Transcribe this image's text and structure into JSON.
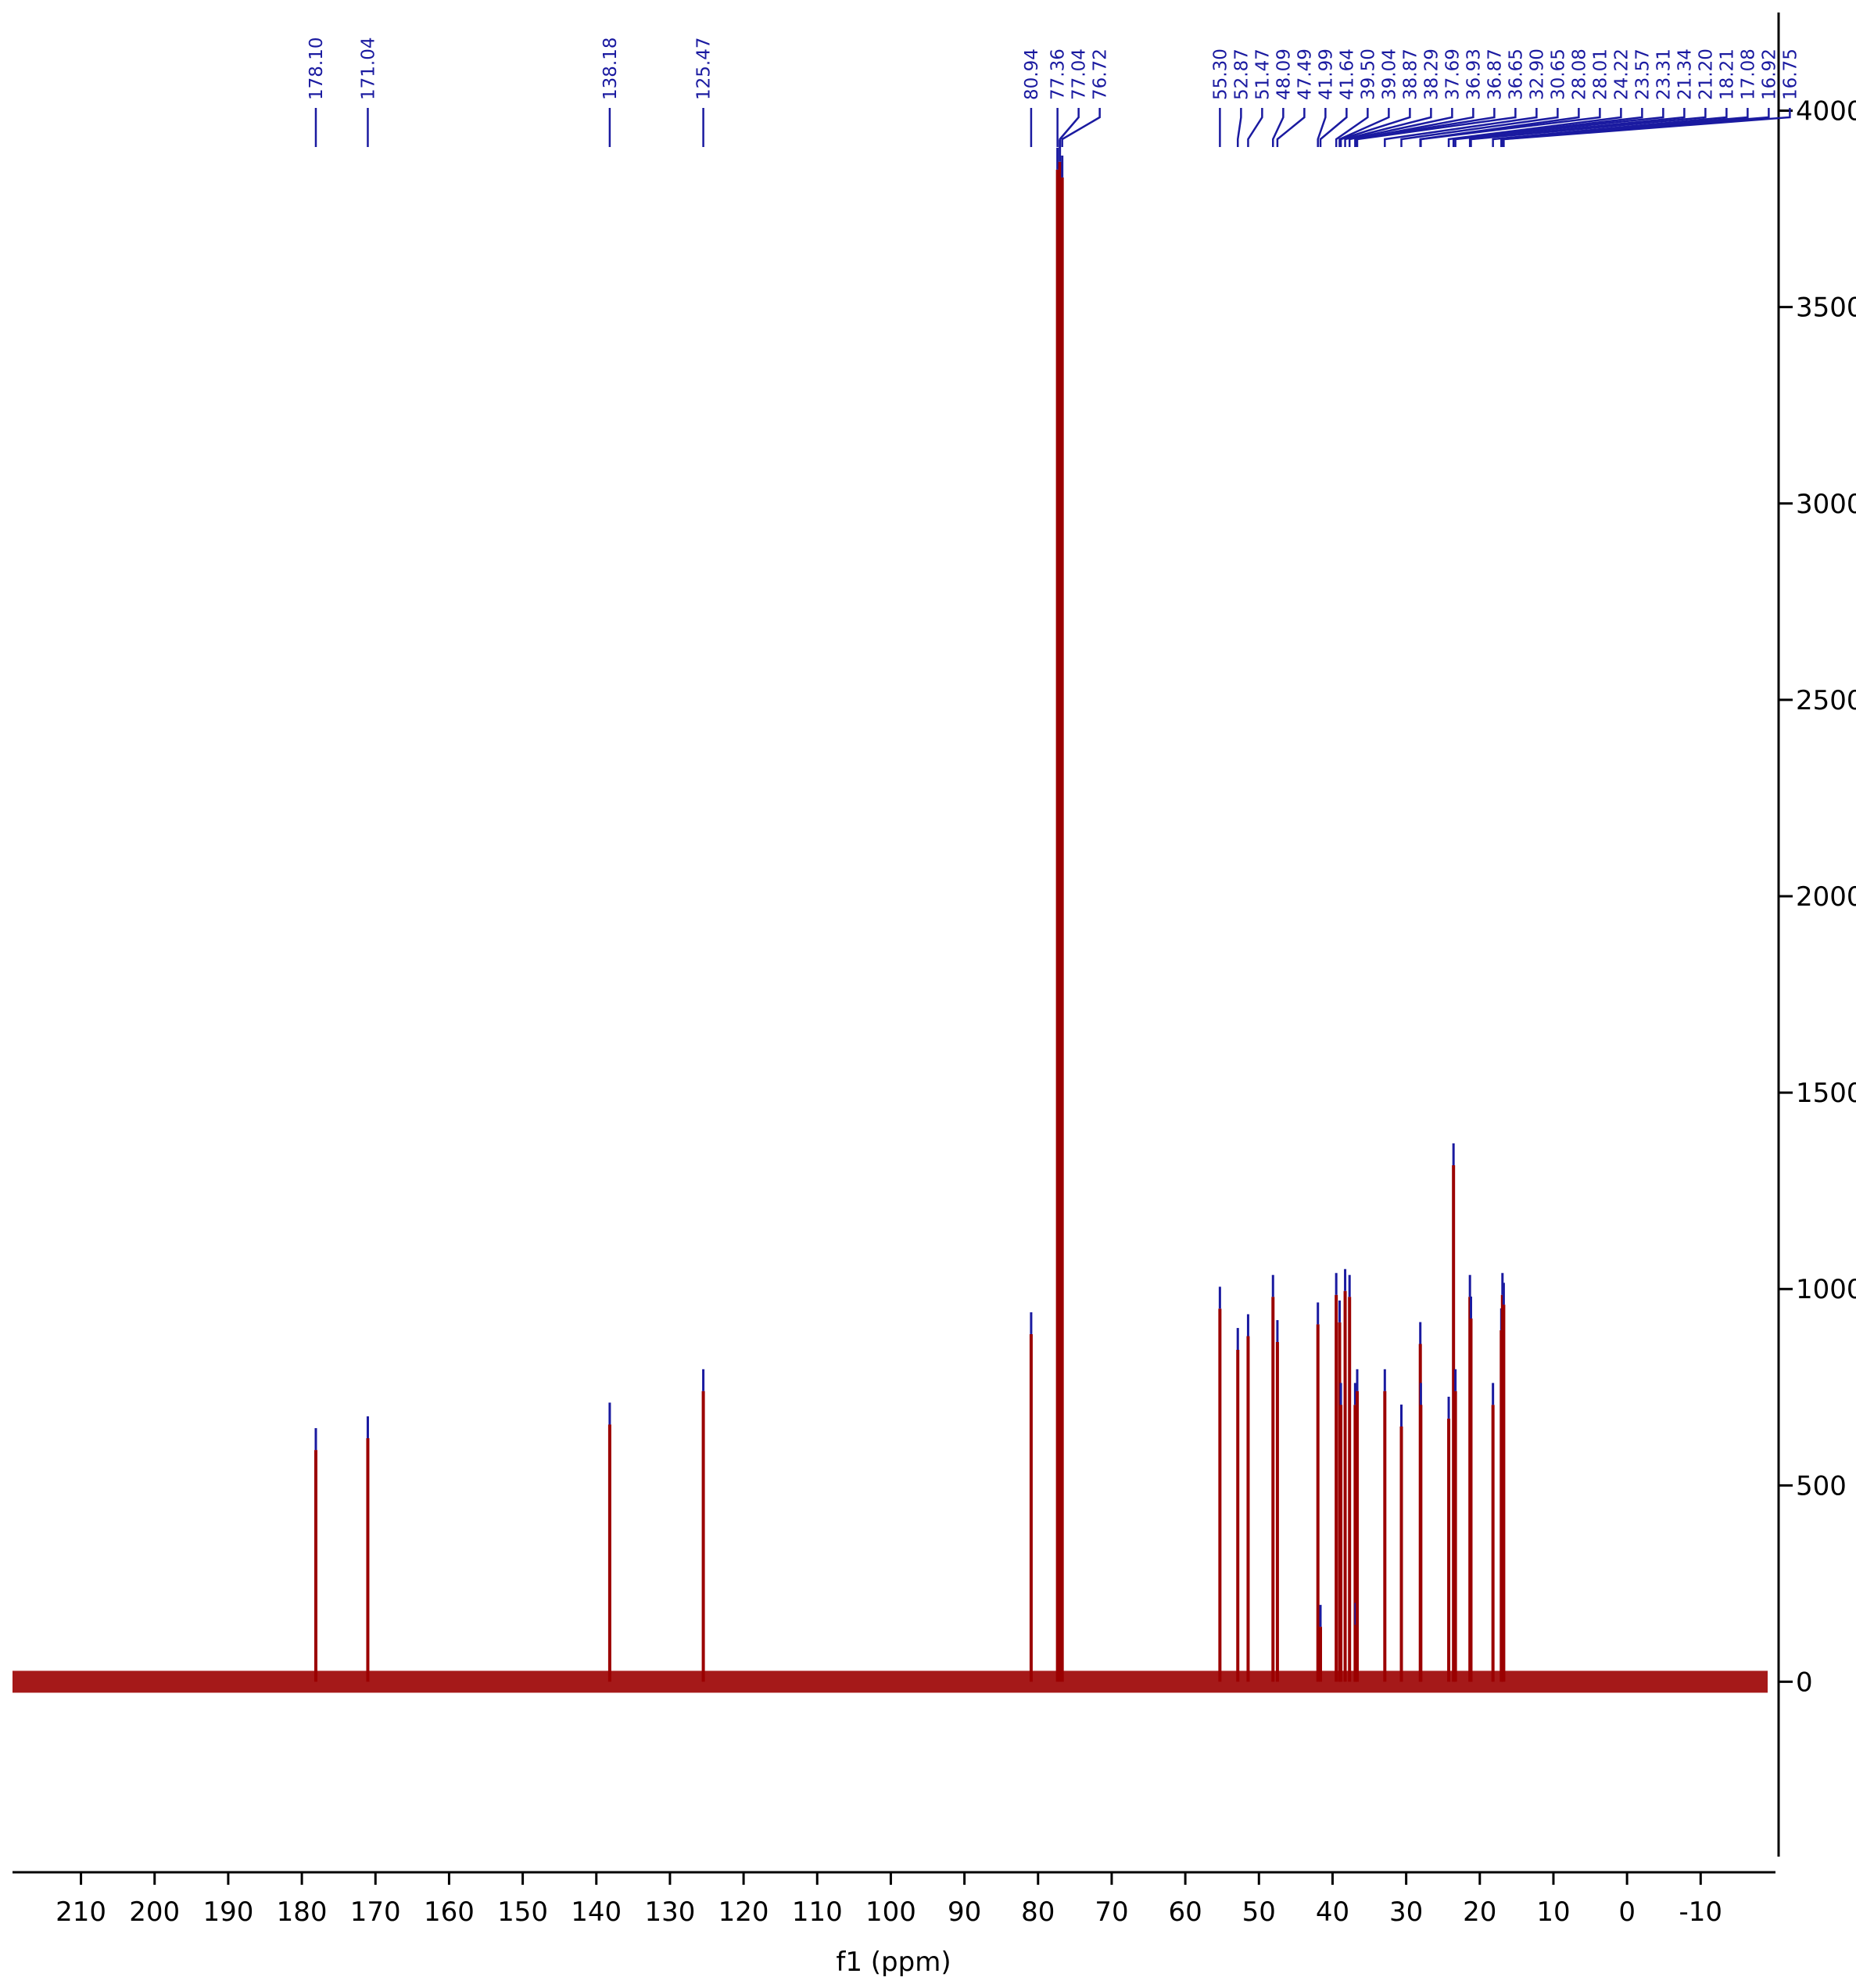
{
  "chart_data": {
    "type": "nmr-stick",
    "x_label": "f1 (ppm)",
    "x": [
      178.1,
      171.04,
      138.18,
      125.47,
      80.94,
      77.36,
      77.04,
      76.72,
      55.3,
      52.87,
      51.47,
      48.09,
      47.49,
      41.99,
      41.64,
      39.5,
      39.04,
      38.87,
      38.29,
      37.69,
      36.93,
      36.87,
      36.65,
      32.9,
      30.65,
      28.08,
      28.01,
      24.22,
      23.57,
      23.31,
      21.34,
      21.2,
      18.21,
      17.08,
      16.92,
      16.75
    ],
    "peak_labels": [
      "178.10",
      "171.04",
      "138.18",
      "125.47",
      "80.94",
      "77.36",
      "77.04",
      "76.72",
      "55.30",
      "52.87",
      "51.47",
      "48.09",
      "47.49",
      "41.99",
      "41.64",
      "39.50",
      "39.04",
      "38.87",
      "38.29",
      "37.69",
      "36.93",
      "36.87",
      "36.65",
      "32.90",
      "30.65",
      "28.08",
      "28.01",
      "24.22",
      "23.57",
      "23.31",
      "21.34",
      "21.20",
      "18.21",
      "17.08",
      "16.92",
      "16.75"
    ],
    "values": [
      590,
      620,
      655,
      740,
      885,
      3850,
      3870,
      3830,
      950,
      845,
      880,
      980,
      865,
      910,
      140,
      985,
      915,
      705,
      995,
      980,
      705,
      145,
      740,
      740,
      650,
      860,
      705,
      670,
      1315,
      740,
      980,
      925,
      705,
      895,
      985,
      960
    ],
    "color": "#9b0000",
    "peak_color": "#1a1aa0",
    "xlim": [
      219.3,
      -19.1
    ],
    "xticks": [
      210,
      200,
      190,
      180,
      170,
      160,
      150,
      140,
      130,
      120,
      110,
      100,
      90,
      80,
      70,
      60,
      50,
      40,
      30,
      20,
      10,
      0,
      -10
    ],
    "ylim": [
      -485,
      4250
    ],
    "yticks": [
      0,
      500,
      1000,
      1500,
      2000,
      2500,
      3000,
      3500,
      4000
    ]
  }
}
